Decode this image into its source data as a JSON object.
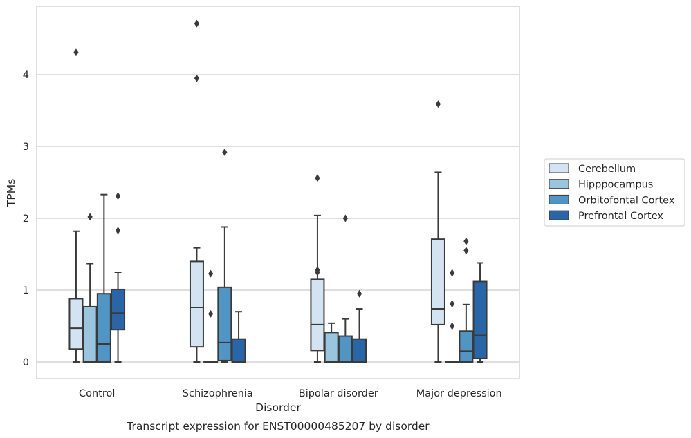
{
  "chart_data": {
    "type": "box",
    "title": "",
    "caption": "Transcript expression for ENST00000485207 by disorder",
    "xlabel": "Disorder",
    "ylabel": "TPMs",
    "ylim": [
      -0.23,
      4.95
    ],
    "yticks": [
      "0",
      "1",
      "2",
      "3",
      "4"
    ],
    "grid": "horizontal",
    "legend_position": "outside-right",
    "categories": [
      "Control",
      "Schizophrenia",
      "Bipolar disorder",
      "Major depression"
    ],
    "series": [
      {
        "name": "Cerebellum",
        "color": "#d3e3f2",
        "boxes": [
          {
            "whislo": 0.0,
            "q1": 0.18,
            "med": 0.47,
            "q3": 0.88,
            "whishi": 1.82,
            "fliers": [
              4.31
            ]
          },
          {
            "whislo": 0.0,
            "q1": 0.21,
            "med": 0.76,
            "q3": 1.4,
            "whishi": 1.59,
            "fliers": [
              3.95,
              4.71
            ]
          },
          {
            "whislo": 0.0,
            "q1": 0.16,
            "med": 0.52,
            "q3": 1.15,
            "whishi": 2.04,
            "fliers": [
              1.25,
              1.28,
              2.56
            ]
          },
          {
            "whislo": 0.0,
            "q1": 0.52,
            "med": 0.74,
            "q3": 1.71,
            "whishi": 2.64,
            "fliers": [
              3.59
            ]
          }
        ]
      },
      {
        "name": "Hipppocampus",
        "color": "#9ac5de",
        "boxes": [
          {
            "whislo": 0.0,
            "q1": 0.0,
            "med": 0.0,
            "q3": 0.77,
            "whishi": 1.37,
            "fliers": [
              2.02
            ]
          },
          {
            "whislo": 0.0,
            "q1": 0.0,
            "med": 0.0,
            "q3": 0.0,
            "whishi": 0.0,
            "fliers": [
              0.67,
              1.23
            ]
          },
          {
            "whislo": 0.0,
            "q1": 0.0,
            "med": 0.0,
            "q3": 0.41,
            "whishi": 0.54,
            "fliers": []
          },
          {
            "whislo": 0.0,
            "q1": 0.0,
            "med": 0.0,
            "q3": 0.0,
            "whishi": 0.0,
            "fliers": [
              0.5,
              0.81,
              1.24
            ]
          }
        ]
      },
      {
        "name": "Orbitofontal Cortex",
        "color": "#5195c4",
        "boxes": [
          {
            "whislo": 0.0,
            "q1": 0.0,
            "med": 0.25,
            "q3": 0.95,
            "whishi": 2.33,
            "fliers": []
          },
          {
            "whislo": 0.0,
            "q1": 0.02,
            "med": 0.27,
            "q3": 1.04,
            "whishi": 1.88,
            "fliers": [
              2.92
            ]
          },
          {
            "whislo": 0.0,
            "q1": 0.0,
            "med": 0.0,
            "q3": 0.36,
            "whishi": 0.6,
            "fliers": [
              2.0
            ]
          },
          {
            "whislo": 0.0,
            "q1": 0.0,
            "med": 0.15,
            "q3": 0.43,
            "whishi": 0.8,
            "fliers": [
              1.55,
              1.68
            ]
          }
        ]
      },
      {
        "name": "Prefrontal Cortex",
        "color": "#2a66a7",
        "boxes": [
          {
            "whislo": 0.0,
            "q1": 0.45,
            "med": 0.68,
            "q3": 1.01,
            "whishi": 1.25,
            "fliers": [
              1.83,
              2.31
            ]
          },
          {
            "whislo": 0.0,
            "q1": 0.0,
            "med": 0.0,
            "q3": 0.32,
            "whishi": 0.7,
            "fliers": []
          },
          {
            "whislo": 0.0,
            "q1": 0.0,
            "med": 0.0,
            "q3": 0.32,
            "whishi": 0.74,
            "fliers": [
              0.95
            ]
          },
          {
            "whislo": 0.0,
            "q1": 0.05,
            "med": 0.37,
            "q3": 1.12,
            "whishi": 1.38,
            "fliers": []
          }
        ]
      }
    ]
  }
}
